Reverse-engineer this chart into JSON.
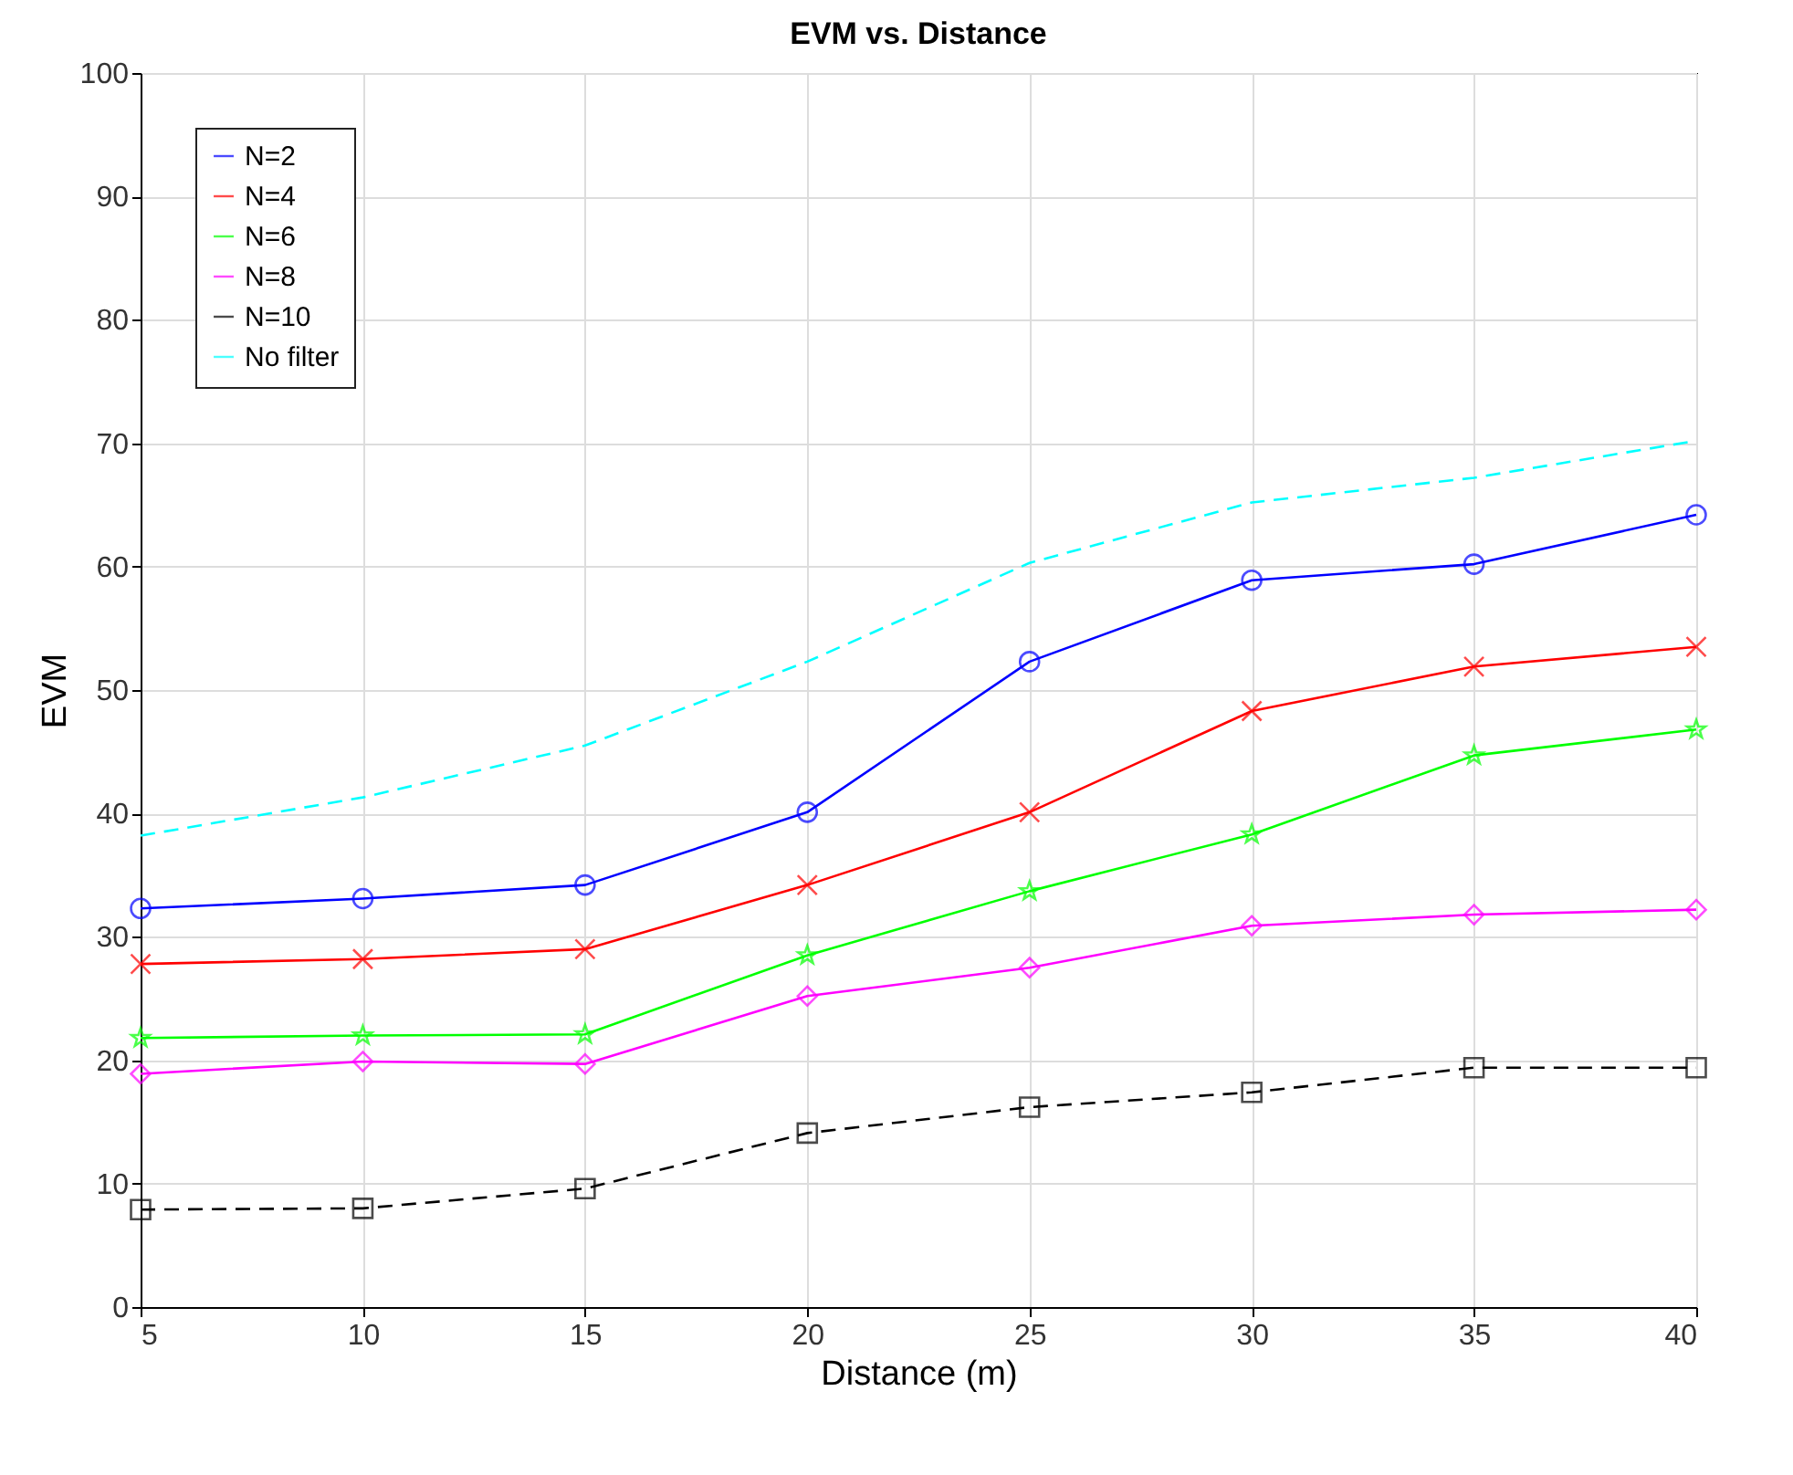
{
  "chart_data": {
    "type": "line",
    "title": "EVM vs. Distance",
    "xlabel": "Distance (m)",
    "ylabel": "EVM",
    "x": [
      5,
      10,
      15,
      20,
      25,
      30,
      35,
      40
    ],
    "xlim": [
      5,
      40
    ],
    "xticks": [
      5,
      10,
      15,
      20,
      25,
      30,
      35,
      40
    ],
    "ylim": [
      0,
      100
    ],
    "yticks": [
      0,
      10,
      20,
      30,
      40,
      50,
      60,
      70,
      80,
      90,
      100
    ],
    "grid": true,
    "legend": "top left",
    "series": [
      {
        "name": "N=2",
        "color": "#0000ff",
        "marker": "circle",
        "line_style": "solid",
        "values": [
          32.3,
          33.1,
          34.2,
          40.1,
          52.3,
          58.9,
          60.2,
          64.2
        ]
      },
      {
        "name": "N=4",
        "color": "#ff0000",
        "marker": "cross",
        "line_style": "solid",
        "values": [
          27.8,
          28.2,
          29.0,
          34.2,
          40.1,
          48.3,
          51.9,
          53.5
        ]
      },
      {
        "name": "N=6",
        "color": "#00ff00",
        "marker": "star",
        "line_style": "solid",
        "values": [
          21.8,
          22.0,
          22.1,
          28.5,
          33.7,
          38.3,
          44.7,
          46.8
        ]
      },
      {
        "name": "N=8",
        "color": "#ff00ff",
        "marker": "diamond",
        "line_style": "solid",
        "values": [
          18.9,
          19.9,
          19.7,
          25.2,
          27.5,
          30.9,
          31.8,
          32.2
        ]
      },
      {
        "name": "N=10",
        "color": "#000000",
        "marker": "square",
        "line_style": "dashed",
        "values": [
          7.9,
          8.0,
          9.6,
          14.1,
          16.2,
          17.4,
          19.4,
          19.4
        ]
      },
      {
        "name": "No filter",
        "color": "#00ffff",
        "marker": "none",
        "line_style": "dashed",
        "values": [
          38.2,
          41.3,
          45.5,
          52.3,
          60.3,
          65.2,
          67.2,
          70.2
        ]
      }
    ]
  }
}
